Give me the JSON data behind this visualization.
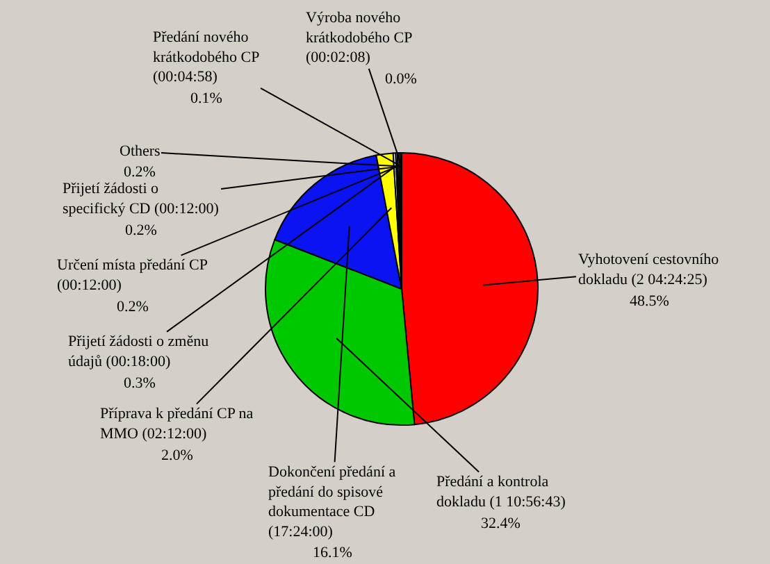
{
  "chart_data": {
    "type": "pie",
    "categories": [
      "Vyhotovení cestovního dokladu (2 04:24:25)",
      "Předání a kontrola dokladu (1 10:56:43)",
      "Dokončení předání a předání do spisové dokumentace CD (17:24:00)",
      "Příprava k předání CP na MMO (02:12:00)",
      "Přijetí žádosti o změnu údajů (00:18:00)",
      "Určení místa předání CP (00:12:00)",
      "Přijetí žádosti o specifický CD (00:12:00)",
      "Others",
      "Předání nového krátkodobého CP (00:04:58)",
      "Výroba nového krátkodobého CP (00:02:08)"
    ],
    "values": [
      48.5,
      32.4,
      16.1,
      2.0,
      0.3,
      0.2,
      0.2,
      0.2,
      0.1,
      0.0
    ],
    "colors": [
      "#ff0000",
      "#00c800",
      "#0a14f0",
      "#ffff00",
      "#e6f2f2",
      "#9fb3c3",
      "#ffffff",
      "#7f8fa0",
      "#404040",
      "#000080"
    ],
    "value_labels": [
      "48.5%",
      "32.4%",
      "16.1%",
      "2.0%",
      "0.3%",
      "0.2%",
      "0.2%",
      "0.2%",
      "0.1%",
      "0.0%"
    ],
    "legend": false
  }
}
